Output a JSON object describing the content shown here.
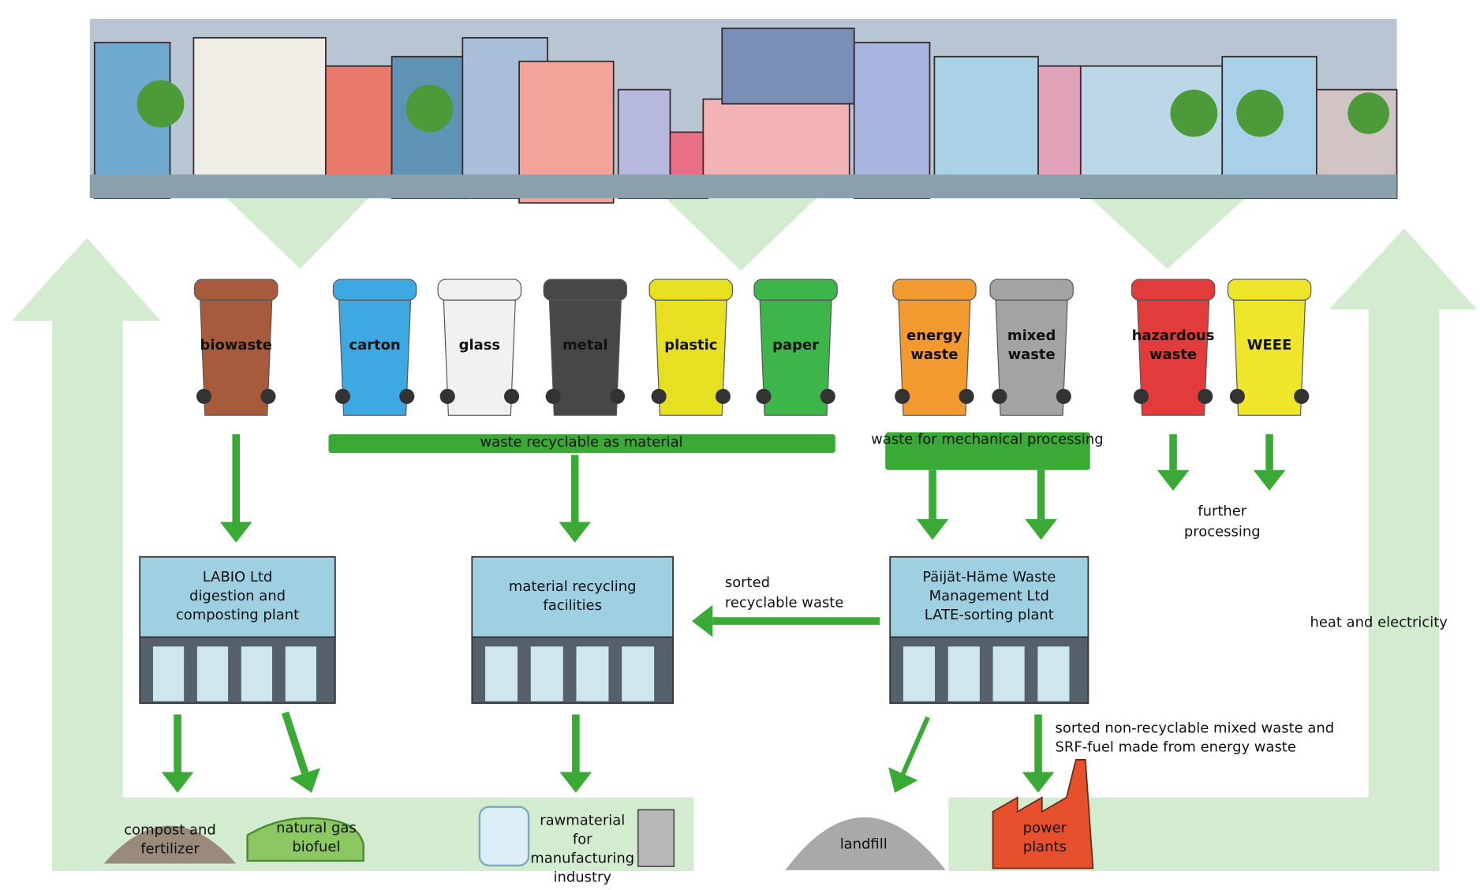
{
  "bins": [
    {
      "label": [
        "biowaste"
      ],
      "color": "#a85b3c"
    },
    {
      "label": [
        "carton"
      ],
      "color": "#3da8e2"
    },
    {
      "label": [
        "glass"
      ],
      "color": "#f1f1f1"
    },
    {
      "label": [
        "metal"
      ],
      "color": "#474747"
    },
    {
      "label": [
        "plastic"
      ],
      "color": "#e6df22"
    },
    {
      "label": [
        "paper"
      ],
      "color": "#3db54b"
    },
    {
      "label": [
        "energy",
        "waste"
      ],
      "color": "#f29a30"
    },
    {
      "label": [
        "mixed",
        "waste"
      ],
      "color": "#a3a3a3"
    },
    {
      "label": [
        "hazardous",
        "waste"
      ],
      "color": "#e23b3b"
    },
    {
      "label": [
        "WEEE"
      ],
      "color": "#efe62c"
    }
  ],
  "groups": {
    "material": [
      "waste recyclable as material"
    ],
    "mechanical": [
      "waste for mechanical processing"
    ]
  },
  "facilities": [
    {
      "label": [
        "LABIO Ltd",
        "digestion and",
        "composting plant"
      ]
    },
    {
      "label": [
        "material recycling",
        "facilities"
      ]
    },
    {
      "label": [
        "Päijät-Häme Waste",
        "Management Ltd",
        "LATE-sorting plant"
      ]
    }
  ],
  "labels": {
    "sorted": [
      "sorted",
      "recyclable waste"
    ],
    "further": [
      "further",
      "processing"
    ],
    "heat": [
      "heat and electricity"
    ],
    "srf": [
      "sorted non-recyclable mixed waste and",
      "SRF-fuel made from energy waste"
    ]
  },
  "outputs": [
    {
      "label": [
        "compost and",
        "fertilizer"
      ]
    },
    {
      "label": [
        "natural gas",
        "biofuel"
      ]
    },
    {
      "label": [
        "rawmaterial",
        "for",
        "manufacturing",
        "industry"
      ]
    },
    {
      "label": [
        "landfill"
      ]
    },
    {
      "label": [
        "power",
        "plants"
      ]
    }
  ]
}
